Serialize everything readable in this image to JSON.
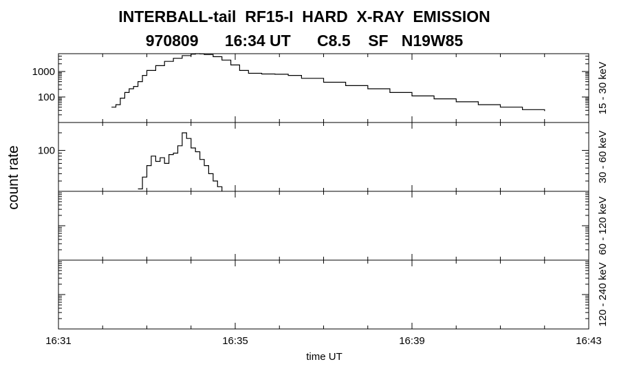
{
  "chart_data": {
    "type": "line",
    "title": "INTERBALL-tail  RF15-I  HARD  X-RAY  EMISSION",
    "subtitle": "970809      16:34 UT      C8.5    SF   N19W85",
    "xlabel": "time UT",
    "ylabel": "count rate",
    "x_ticks": [
      "16:31",
      "16:35",
      "16:39",
      "16:43"
    ],
    "x_range_minutes": [
      0,
      12
    ],
    "grid": false,
    "panels": [
      {
        "name": "15 - 30 keV",
        "scale": "log",
        "ylim": [
          10,
          5000
        ],
        "y_ticks": [
          {
            "value": 100,
            "label": "100"
          },
          {
            "value": 1000,
            "label": "1000"
          }
        ],
        "x": [
          1.2,
          1.3,
          1.4,
          1.5,
          1.6,
          1.7,
          1.8,
          1.9,
          2.0,
          2.2,
          2.4,
          2.6,
          2.8,
          3.0,
          3.1,
          3.2,
          3.3,
          3.5,
          3.7,
          3.9,
          4.1,
          4.3,
          4.6,
          4.9,
          5.2,
          5.5,
          6.0,
          6.5,
          7.0,
          7.5,
          8.0,
          8.5,
          9.0,
          9.5,
          10.0,
          10.5,
          11.0
        ],
        "values": [
          40,
          50,
          90,
          150,
          210,
          260,
          400,
          700,
          1100,
          1700,
          2500,
          3300,
          4200,
          4800,
          5000,
          4900,
          4600,
          3800,
          2800,
          1800,
          1100,
          850,
          800,
          780,
          700,
          540,
          380,
          280,
          210,
          150,
          110,
          85,
          65,
          50,
          40,
          32,
          28
        ]
      },
      {
        "name": "30 - 60 keV",
        "scale": "log",
        "ylim": [
          20,
          300
        ],
        "y_ticks": [
          {
            "value": 100,
            "label": "100"
          }
        ],
        "x": [
          1.8,
          1.9,
          2.0,
          2.1,
          2.2,
          2.3,
          2.4,
          2.5,
          2.6,
          2.7,
          2.8,
          2.9,
          3.0,
          3.1,
          3.2,
          3.3,
          3.4,
          3.5,
          3.6,
          3.7
        ],
        "values": [
          22,
          35,
          55,
          80,
          65,
          75,
          60,
          85,
          90,
          120,
          200,
          160,
          110,
          95,
          70,
          55,
          40,
          30,
          24,
          20
        ]
      },
      {
        "name": "60 - 120 keV",
        "scale": "log",
        "ylim": [
          10,
          1000
        ],
        "y_ticks": [],
        "x": [],
        "values": []
      },
      {
        "name": "120 - 240 keV",
        "scale": "log",
        "ylim": [
          10,
          1000
        ],
        "y_ticks": [],
        "x": [],
        "values": []
      }
    ]
  }
}
